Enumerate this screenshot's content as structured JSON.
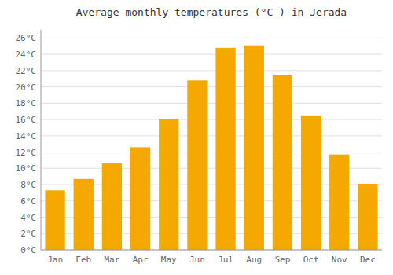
{
  "chart_data": {
    "type": "bar",
    "title": "Average monthly temperatures (°C ) in Jerada",
    "categories": [
      "Jan",
      "Feb",
      "Mar",
      "Apr",
      "May",
      "Jun",
      "Jul",
      "Aug",
      "Sep",
      "Oct",
      "Nov",
      "Dec"
    ],
    "values": [
      7.3,
      8.7,
      10.6,
      12.6,
      16.1,
      20.8,
      24.8,
      25.1,
      21.5,
      16.5,
      11.7,
      8.1
    ],
    "color": "#F5A800",
    "ylim": [
      0,
      27
    ],
    "yticks": [
      {
        "value": 0,
        "label": "0°C"
      },
      {
        "value": 2,
        "label": "2°C"
      },
      {
        "value": 4,
        "label": "4°C"
      },
      {
        "value": 6,
        "label": "6°C"
      },
      {
        "value": 8,
        "label": "8°C"
      },
      {
        "value": 10,
        "label": "10°C"
      },
      {
        "value": 12,
        "label": "12°C"
      },
      {
        "value": 14,
        "label": "14°C"
      },
      {
        "value": 16,
        "label": "16°C"
      },
      {
        "value": 18,
        "label": "18°C"
      },
      {
        "value": 20,
        "label": "20°C"
      },
      {
        "value": 22,
        "label": "22°C"
      },
      {
        "value": 24,
        "label": "24°C"
      },
      {
        "value": 26,
        "label": "26°C"
      }
    ],
    "grid": true
  }
}
